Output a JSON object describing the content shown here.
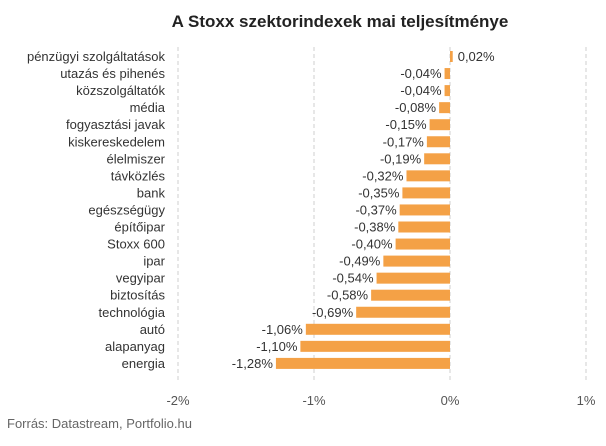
{
  "chart_data": {
    "type": "bar",
    "orientation": "horizontal",
    "title": "A Stoxx szektorindexek mai teljesítménye",
    "source": "Forrás: Datastream, Portfolio.hu",
    "categories": [
      "pénzügyi szolgáltatások",
      "utazás és pihenés",
      "közszolgáltatók",
      "média",
      "fogyasztási javak",
      "kiskereskedelem",
      "élelmiszer",
      "távközlés",
      "bank",
      "egészségügy",
      "építőipar",
      "Stoxx 600",
      "ipar",
      "vegyipar",
      "biztosítás",
      "technológia",
      "autó",
      "alapanyag",
      "energia"
    ],
    "values": [
      0.02,
      -0.04,
      -0.04,
      -0.08,
      -0.15,
      -0.17,
      -0.19,
      -0.32,
      -0.35,
      -0.37,
      -0.38,
      -0.4,
      -0.49,
      -0.54,
      -0.58,
      -0.69,
      -1.06,
      -1.1,
      -1.28
    ],
    "value_labels": [
      "0,02%",
      "-0,04%",
      "-0,04%",
      "-0,08%",
      "-0,15%",
      "-0,17%",
      "-0,19%",
      "-0,32%",
      "-0,35%",
      "-0,37%",
      "-0,38%",
      "-0,40%",
      "-0,49%",
      "-0,54%",
      "-0,58%",
      "-0,69%",
      "-1,06%",
      "-1,10%",
      "-1,28%"
    ],
    "xlim": [
      -2,
      1
    ],
    "xticks": [
      -2,
      -1,
      0,
      1
    ],
    "xtick_labels": [
      "-2%",
      "-1%",
      "0%",
      "1%"
    ],
    "grid": "vertical-dashed",
    "legend": "none",
    "colors": {
      "bar": "#f4a146",
      "text": "#333333",
      "grid": "#cfcfcf",
      "axis_text": "#555555"
    }
  }
}
